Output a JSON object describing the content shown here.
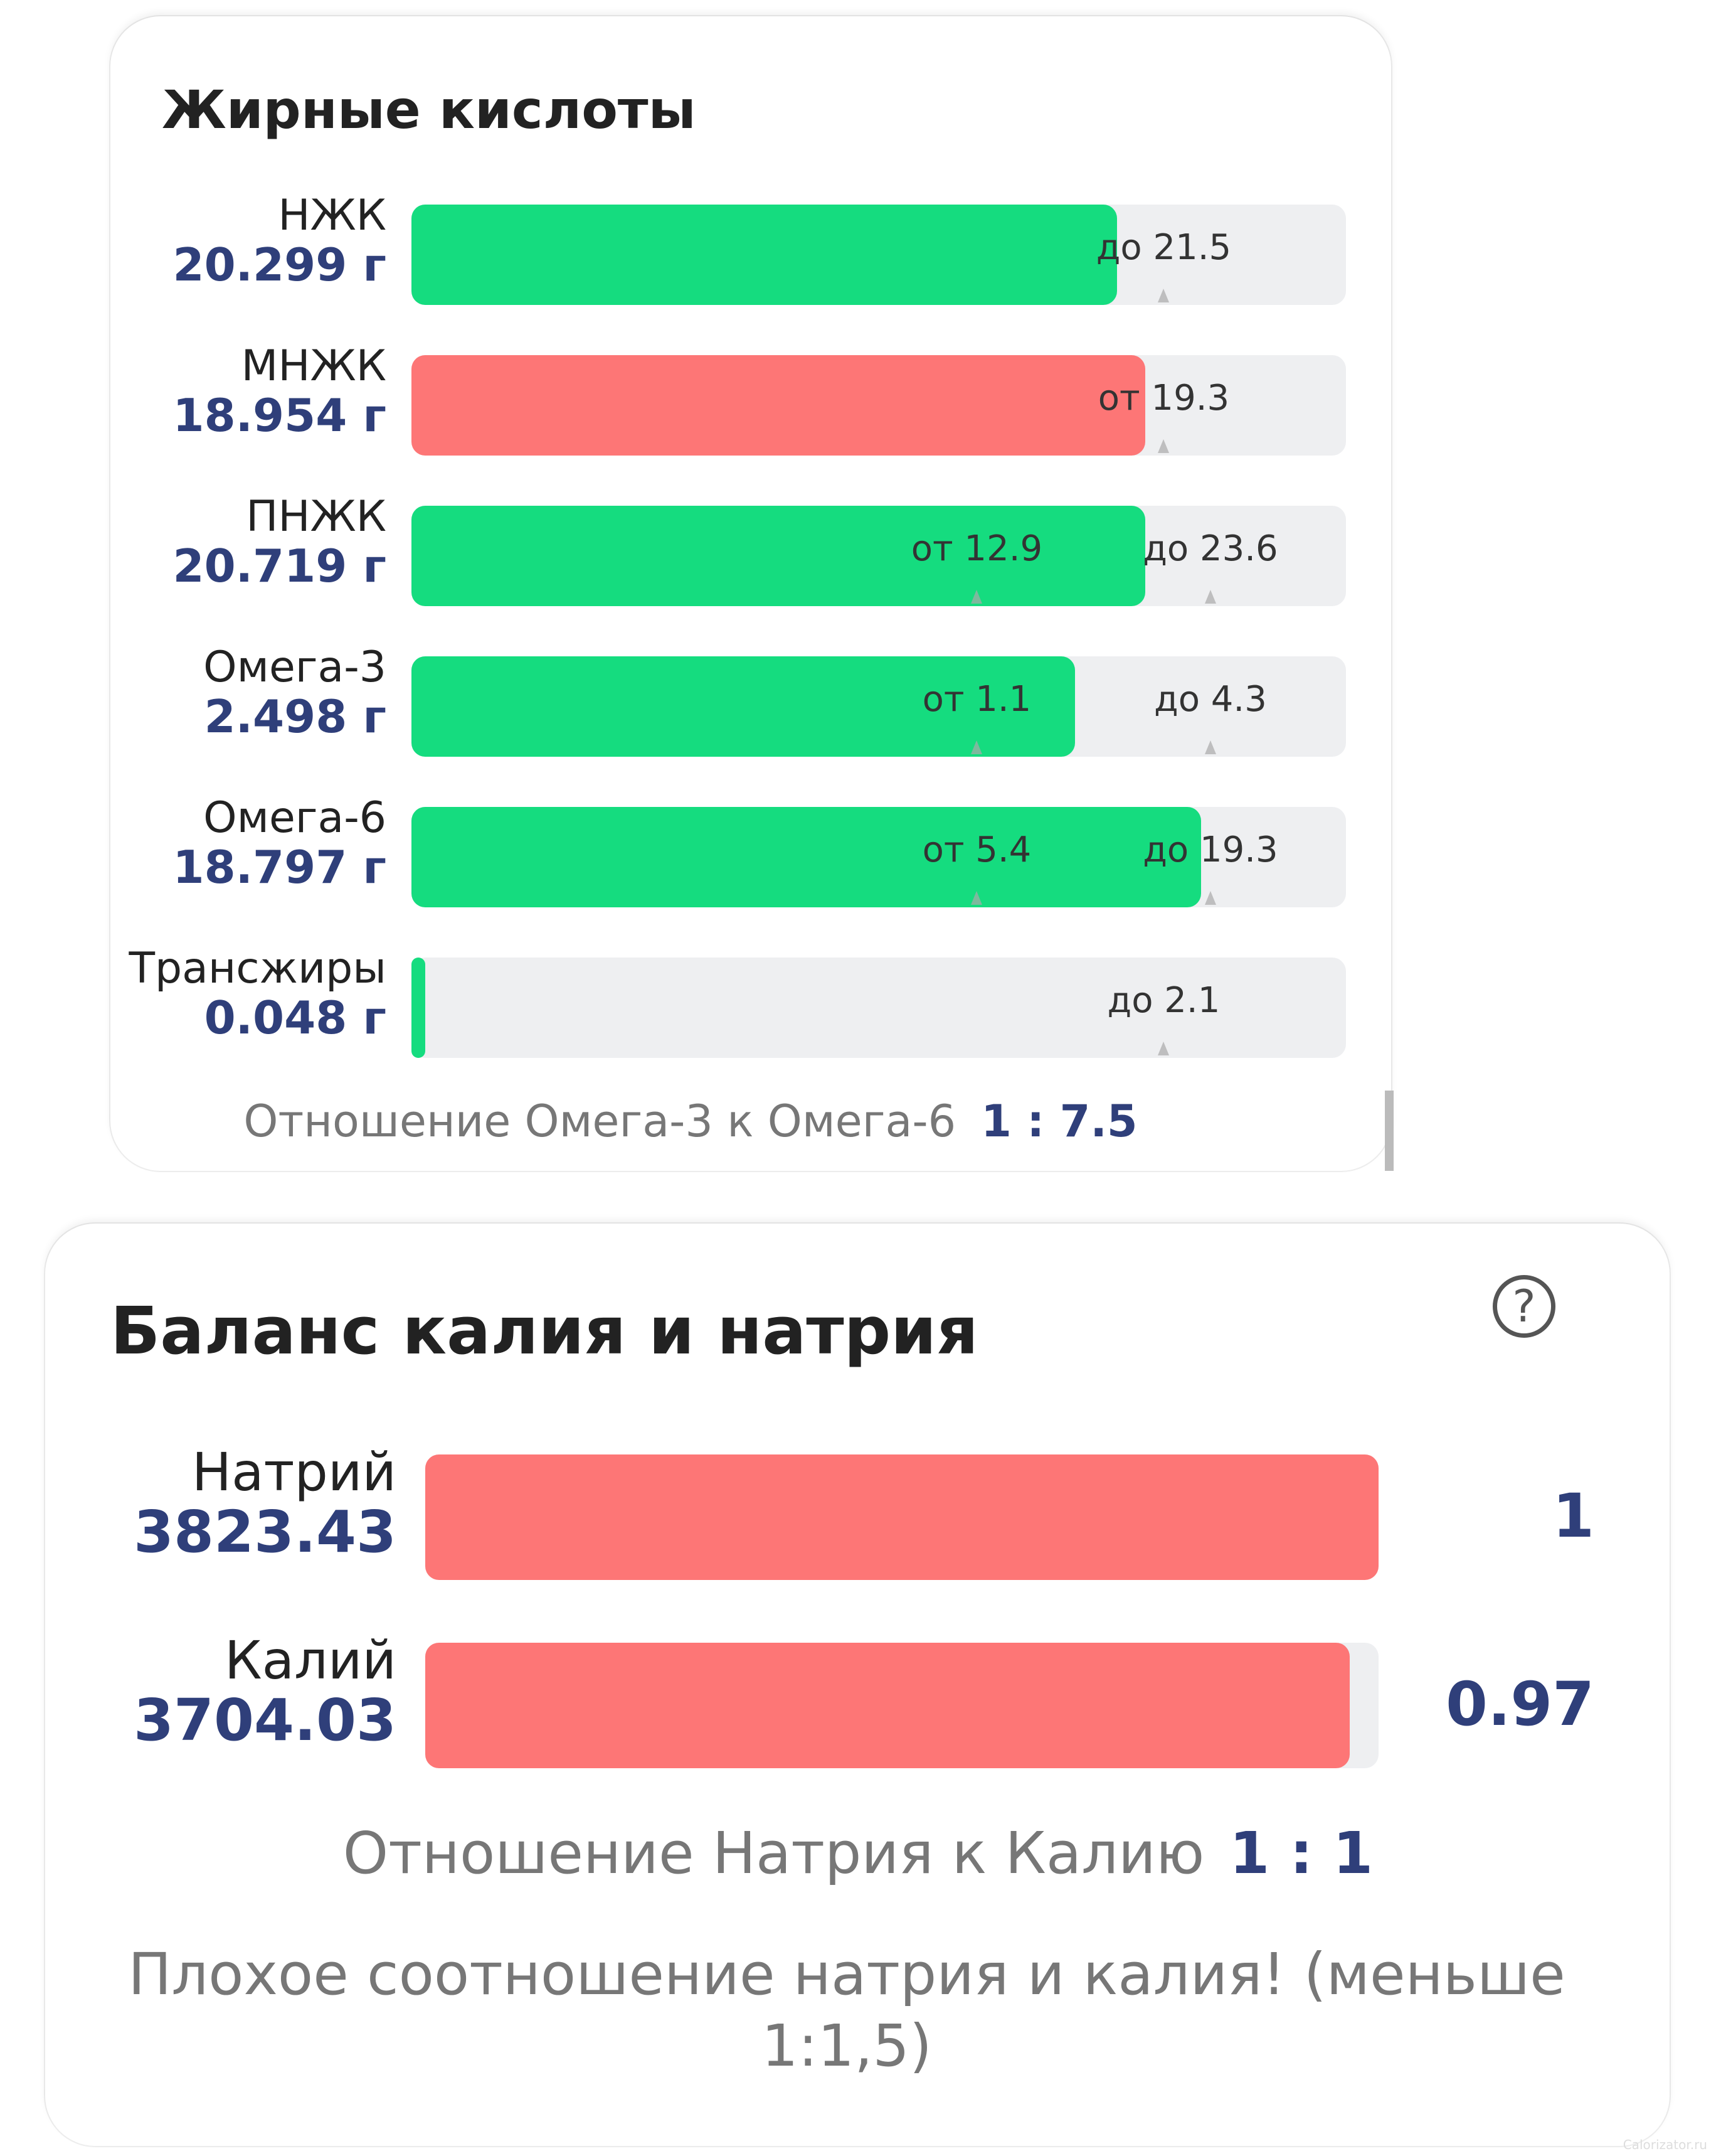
{
  "fatty_acids": {
    "title": "Жирные кислоты",
    "rows": [
      {
        "name": "НЖК",
        "value": "20.299 г",
        "fill_pct": 75.5,
        "color": "#15dc7f",
        "markers": [
          {
            "label": "до 21.5",
            "pct": 80.5
          }
        ]
      },
      {
        "name": "МНЖК",
        "value": "18.954 г",
        "fill_pct": 78.5,
        "color": "#fd7676",
        "markers": [
          {
            "label": "от 19.3",
            "pct": 80.5
          }
        ]
      },
      {
        "name": "ПНЖК",
        "value": "20.719 г",
        "fill_pct": 78.5,
        "color": "#15dc7f",
        "markers": [
          {
            "label": "от 12.9",
            "pct": 60.5
          },
          {
            "label": "до 23.6",
            "pct": 85.5
          }
        ]
      },
      {
        "name": "Омега-3",
        "value": "2.498 г",
        "fill_pct": 71,
        "color": "#15dc7f",
        "markers": [
          {
            "label": "от 1.1",
            "pct": 60.5
          },
          {
            "label": "до 4.3",
            "pct": 85.5
          }
        ]
      },
      {
        "name": "Омега-6",
        "value": "18.797 г",
        "fill_pct": 84.5,
        "color": "#15dc7f",
        "markers": [
          {
            "label": "от 5.4",
            "pct": 60.5
          },
          {
            "label": "до 19.3",
            "pct": 85.5
          }
        ]
      },
      {
        "name": "Трансжиры",
        "value": "0.048 г",
        "fill_pct": 1.5,
        "color": "#15dc7f",
        "markers": [
          {
            "label": "до 2.1",
            "pct": 80.5
          }
        ]
      }
    ],
    "ratio_label": "Отношение Омега-3 к Омега-6",
    "ratio_value": "1 : 7.5"
  },
  "potassium_sodium": {
    "title": "Баланс калия и натрия",
    "help_icon": "question-circle-icon",
    "help_glyph": "?",
    "rows": [
      {
        "name": "Натрий",
        "value": "3823.43",
        "fill_pct": 100,
        "side_value": "1",
        "color": "#fd7676"
      },
      {
        "name": "Калий",
        "value": "3704.03",
        "fill_pct": 97,
        "side_value": "0.97",
        "color": "#fd7676"
      }
    ],
    "ratio_label": "Отношение Натрия к Калию",
    "ratio_value": "1 : 1",
    "warning": "Плохое соотношение натрия и калия! (меньше 1:1,5)"
  },
  "watermark": "Calorizator.ru"
}
